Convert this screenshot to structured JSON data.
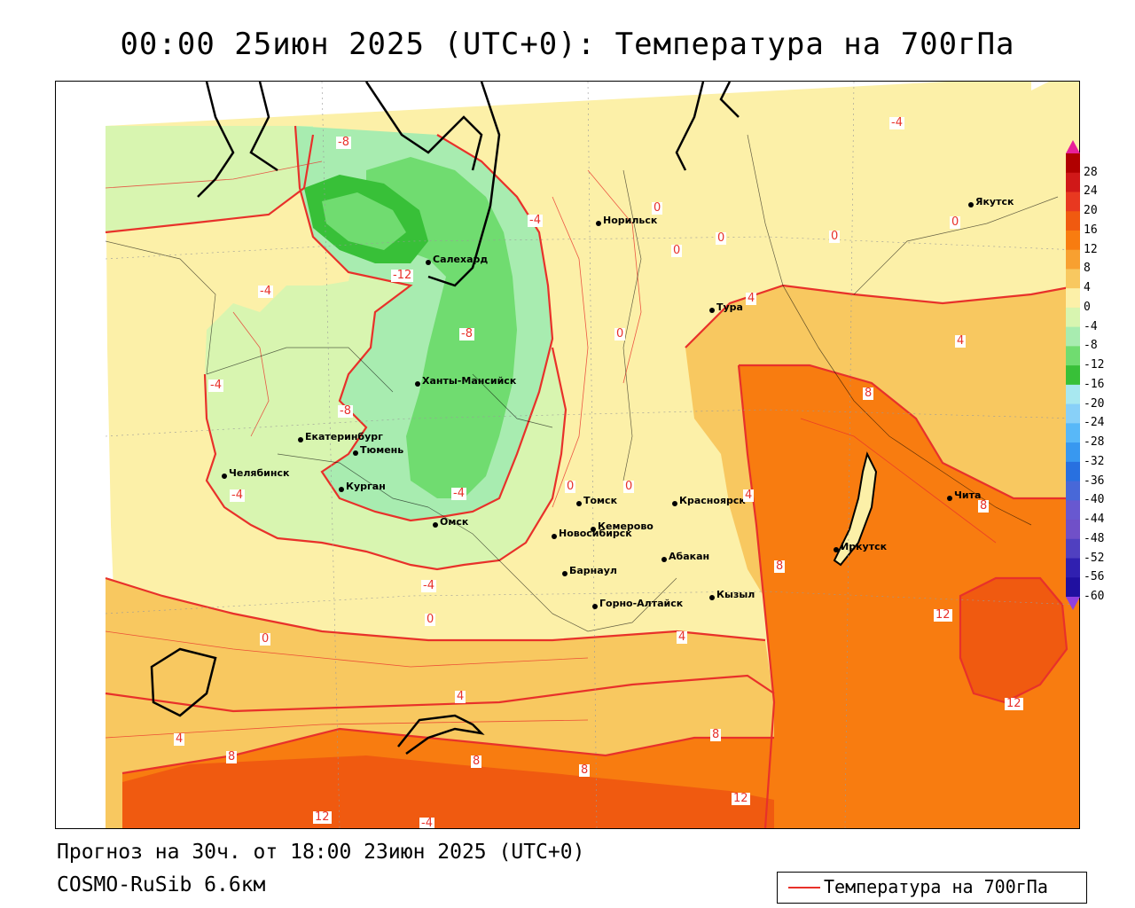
{
  "header": {
    "title": "00:00 25июн 2025 (UTC+0): Температура на 700гПа"
  },
  "footer": {
    "forecast": "Прогноз на 30ч. от 18:00 23июн 2025 (UTC+0)",
    "model": "COSMO-RuSib 6.6км"
  },
  "legend": {
    "label": "Температура на 700гПа",
    "line_color": "#e8312a"
  },
  "colorbar": {
    "labels": [
      "28",
      "24",
      "20",
      "16",
      "12",
      "8",
      "4",
      "0",
      "-4",
      "-8",
      "-12",
      "-16",
      "-20",
      "-24",
      "-28",
      "-32",
      "-36",
      "-40",
      "-44",
      "-48",
      "-52",
      "-56",
      "-60"
    ],
    "colors": [
      "#b00000",
      "#d01818",
      "#e83820",
      "#f05a10",
      "#f87c10",
      "#f8a030",
      "#f8c860",
      "#fcf0a8",
      "#d8f5b0",
      "#a8ecb0",
      "#70dc70",
      "#38c038",
      "#a8e8f0",
      "#88d0f8",
      "#58b8f8",
      "#3898f0",
      "#2870e0",
      "#4868d8",
      "#6858d0",
      "#7050c8",
      "#5040c0",
      "#3020b0",
      "#2010a0"
    ],
    "arrow_top": "#e8209a",
    "arrow_bottom": "#9040e0"
  },
  "cities": [
    {
      "name": "Норильск"
    },
    {
      "name": "Якутск"
    },
    {
      "name": "Салехард"
    },
    {
      "name": "Тура"
    },
    {
      "name": "Ханты-Мансийск"
    },
    {
      "name": "Екатеринбург"
    },
    {
      "name": "Тюмень"
    },
    {
      "name": "Челябинск"
    },
    {
      "name": "Курган"
    },
    {
      "name": "Омск"
    },
    {
      "name": "Новосибирск"
    },
    {
      "name": "Томск"
    },
    {
      "name": "Красноярск"
    },
    {
      "name": "Кемерово"
    },
    {
      "name": "Абакан"
    },
    {
      "name": "Барнаул"
    },
    {
      "name": "Горно-Алтайск"
    },
    {
      "name": "Кызыл"
    },
    {
      "name": "Иркутск"
    },
    {
      "name": "Чита"
    }
  ],
  "contour_labels": [
    "-8",
    "-4",
    "-12",
    "-4",
    "-4",
    "-8",
    "-8",
    "-4",
    "-4",
    "-4",
    "-4",
    "0",
    "0",
    "0",
    "0",
    "0",
    "0",
    "0",
    "0",
    "0",
    "0",
    "4",
    "4",
    "4",
    "4",
    "4",
    "4",
    "8",
    "8",
    "8",
    "8",
    "8",
    "8",
    "12",
    "12",
    "12",
    "12",
    "-4",
    "8"
  ],
  "map": {
    "field": "temperature_700hPa",
    "unit": "°C"
  }
}
